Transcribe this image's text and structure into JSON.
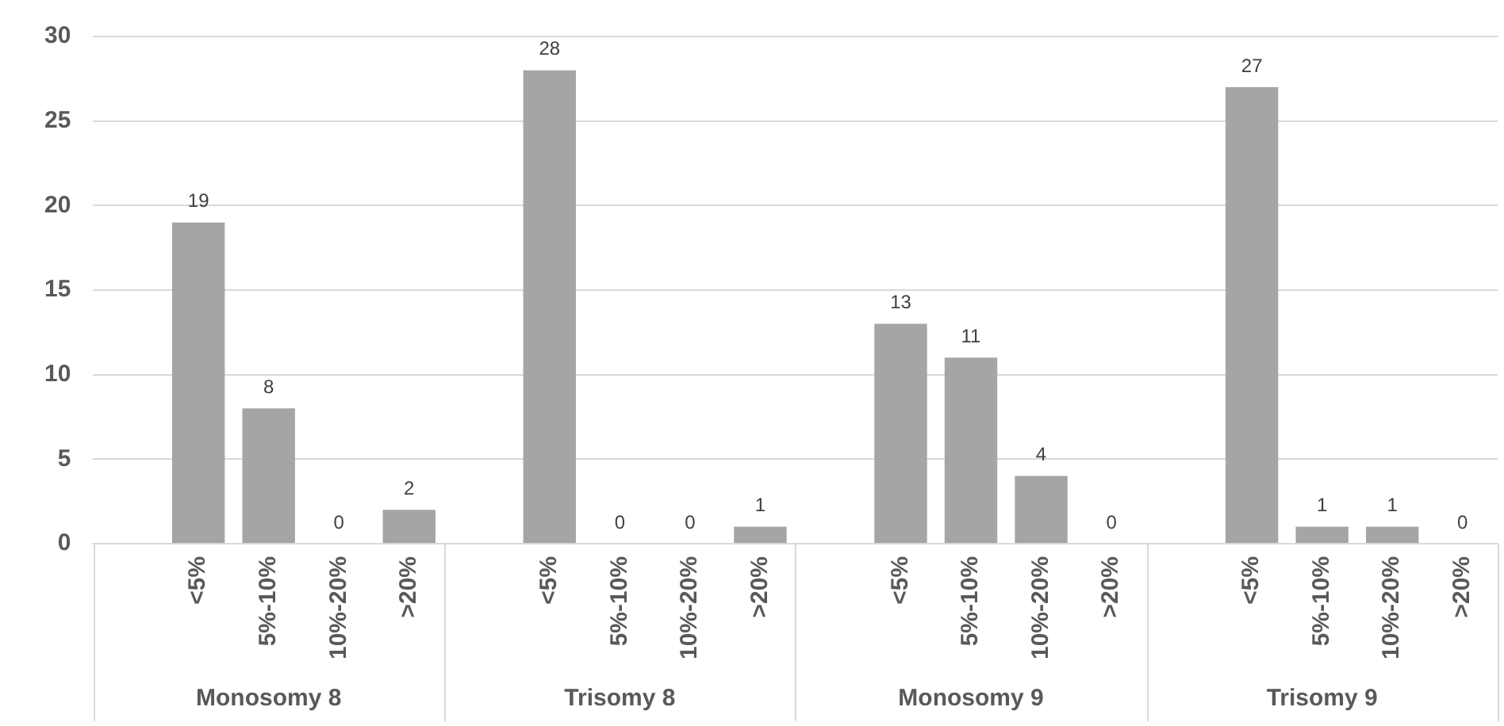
{
  "chart_data": {
    "type": "bar",
    "categories": [
      null,
      "<5%",
      "5%-10%",
      "10%-20%",
      ">20%",
      null,
      "<5%",
      "5%-10%",
      "10%-20%",
      ">20%",
      null,
      "<5%",
      "5%-10%",
      "10%-20%",
      ">20%",
      null,
      "<5%",
      "5%-10%",
      "10%-20%",
      ">20%"
    ],
    "values": [
      null,
      19,
      8,
      0,
      2,
      null,
      28,
      0,
      0,
      1,
      null,
      13,
      11,
      4,
      0,
      null,
      27,
      1,
      1,
      0
    ],
    "color": "#a5a5a5",
    "ylim": [
      0,
      30
    ],
    "yticks": [
      0,
      5,
      10,
      15,
      20,
      25,
      30
    ],
    "grid": "y",
    "data_labels": true,
    "annotations": [
      "Monosomy 8",
      "Trisomy 8",
      "Monosomy 9",
      "Trisomy 9"
    ]
  }
}
